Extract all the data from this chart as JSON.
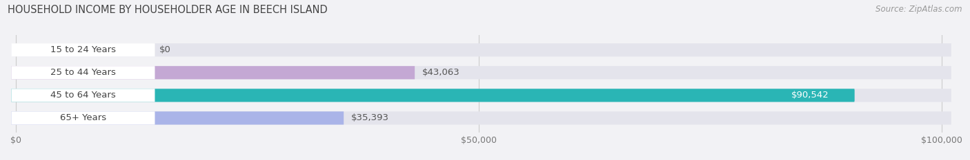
{
  "title": "HOUSEHOLD INCOME BY HOUSEHOLDER AGE IN BEECH ISLAND",
  "source": "Source: ZipAtlas.com",
  "categories": [
    "15 to 24 Years",
    "25 to 44 Years",
    "45 to 64 Years",
    "65+ Years"
  ],
  "values": [
    0,
    43063,
    90542,
    35393
  ],
  "labels": [
    "$0",
    "$43,063",
    "$90,542",
    "$35,393"
  ],
  "bar_colors": [
    "#a8b8e8",
    "#c4a8d4",
    "#2ab5b5",
    "#aab4e8"
  ],
  "label_colors": [
    "#555555",
    "#555555",
    "#ffffff",
    "#555555"
  ],
  "background_color": "#f2f2f5",
  "bar_bg_color": "#e4e4ec",
  "max_value": 100000,
  "xticks": [
    0,
    50000,
    100000
  ],
  "xtick_labels": [
    "$0",
    "$50,000",
    "$100,000"
  ],
  "title_fontsize": 10.5,
  "source_fontsize": 8.5,
  "cat_fontsize": 9.5,
  "val_fontsize": 9.5,
  "tick_fontsize": 9,
  "bar_height": 0.58,
  "bar_gap": 0.42
}
